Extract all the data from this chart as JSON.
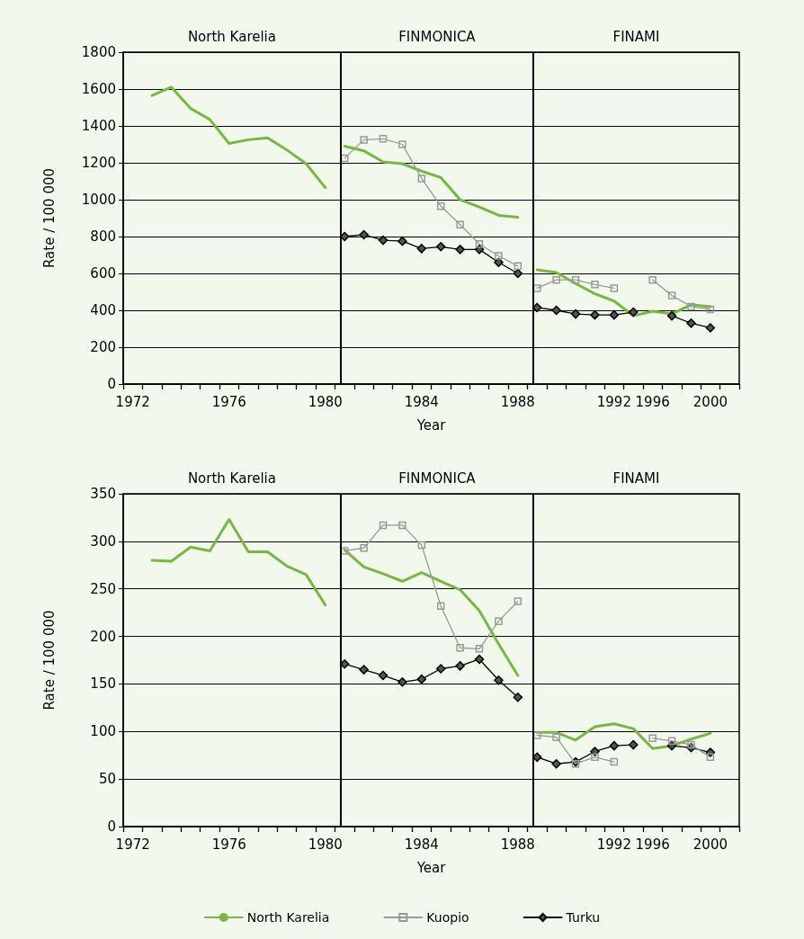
{
  "chart_data": [
    {
      "type": "line",
      "xlabel": "Year",
      "ylabel": "Rate / 100 000",
      "categories": [
        "1972",
        null,
        null,
        null,
        null,
        "1976",
        null,
        null,
        null,
        null,
        "1980",
        null,
        null,
        null,
        null,
        "1984",
        null,
        null,
        null,
        null,
        "1988",
        null,
        null,
        null,
        null,
        "1992",
        null,
        "1996",
        null,
        null,
        "2000",
        null
      ],
      "ylim": [
        0,
        1800
      ],
      "yticks": [
        0,
        200,
        400,
        600,
        800,
        1000,
        1200,
        1400,
        1600,
        1800
      ],
      "grid": "y",
      "legend": false,
      "annotations": [
        "North Karelia",
        "FINMONICA",
        "FINAMI"
      ],
      "series": [
        {
          "color": "#77b843",
          "marker": "none",
          "values": [
            null,
            1565,
            1610,
            1495,
            1435,
            1305,
            1325,
            1335,
            1270,
            1195,
            1065,
            null,
            null,
            null,
            null,
            null,
            null,
            null,
            null,
            null,
            null,
            null,
            null,
            null,
            null,
            null,
            null,
            null,
            null,
            null,
            null,
            null
          ]
        },
        {
          "color": "#77b843",
          "marker": "none",
          "values": [
            null,
            null,
            null,
            null,
            null,
            null,
            null,
            null,
            null,
            null,
            null,
            1290,
            1265,
            1205,
            1195,
            1155,
            1120,
            1000,
            960,
            915,
            905,
            null,
            null,
            null,
            null,
            null,
            null,
            null,
            null,
            null,
            null,
            null
          ]
        },
        {
          "color": "#77b843",
          "marker": "none",
          "values": [
            null,
            null,
            null,
            null,
            null,
            null,
            null,
            null,
            null,
            null,
            null,
            null,
            null,
            null,
            null,
            null,
            null,
            null,
            null,
            null,
            null,
            620,
            605,
            545,
            490,
            450,
            370,
            395,
            380,
            430,
            420,
            null
          ]
        },
        {
          "color": "#999999",
          "marker": "square",
          "values": [
            null,
            null,
            null,
            null,
            null,
            null,
            null,
            null,
            null,
            null,
            null,
            1225,
            1325,
            1330,
            1300,
            1115,
            965,
            865,
            760,
            695,
            640,
            null,
            null,
            null,
            null,
            null,
            null,
            null,
            null,
            null,
            null,
            null
          ]
        },
        {
          "color": "#999999",
          "marker": "square",
          "values": [
            null,
            null,
            null,
            null,
            null,
            null,
            null,
            null,
            null,
            null,
            null,
            null,
            null,
            null,
            null,
            null,
            null,
            null,
            null,
            null,
            null,
            520,
            565,
            565,
            540,
            520,
            null,
            565,
            480,
            420,
            405,
            null
          ]
        },
        {
          "color": "#000000",
          "marker": "diamond",
          "values": [
            null,
            null,
            null,
            null,
            null,
            null,
            null,
            null,
            null,
            null,
            null,
            800,
            810,
            780,
            775,
            735,
            745,
            730,
            730,
            660,
            600,
            null,
            null,
            null,
            null,
            null,
            null,
            null,
            null,
            null,
            null,
            null
          ]
        },
        {
          "color": "#000000",
          "marker": "diamond",
          "values": [
            null,
            null,
            null,
            null,
            null,
            null,
            null,
            null,
            null,
            null,
            null,
            null,
            null,
            null,
            null,
            null,
            null,
            null,
            null,
            null,
            null,
            415,
            400,
            380,
            375,
            375,
            390,
            null,
            370,
            330,
            305,
            null
          ]
        }
      ]
    },
    {
      "type": "line",
      "xlabel": "Year",
      "ylabel": "Rate / 100 000",
      "categories": [
        "1972",
        null,
        null,
        null,
        null,
        "1976",
        null,
        null,
        null,
        null,
        "1980",
        null,
        null,
        null,
        null,
        "1984",
        null,
        null,
        null,
        null,
        "1988",
        null,
        null,
        null,
        null,
        "1992",
        null,
        "1996",
        null,
        null,
        "2000",
        null
      ],
      "ylim": [
        0,
        350
      ],
      "yticks": [
        0,
        50,
        100,
        150,
        200,
        250,
        300,
        350
      ],
      "grid": "y",
      "legend": "bottom",
      "annotations": [
        "North Karelia",
        "FINMONICA",
        "FINAMI"
      ],
      "series": [
        {
          "name": "North Karelia",
          "color": "#77b843",
          "marker": "none",
          "values": [
            null,
            280,
            279,
            294,
            290,
            323,
            289,
            289,
            274,
            265,
            233,
            null,
            null,
            null,
            null,
            null,
            null,
            null,
            null,
            null,
            null,
            null,
            null,
            null,
            null,
            null,
            null,
            null,
            null,
            null,
            null,
            null
          ]
        },
        {
          "color": "#77b843",
          "marker": "none",
          "values": [
            null,
            null,
            null,
            null,
            null,
            null,
            null,
            null,
            null,
            null,
            null,
            291,
            273,
            266,
            258,
            267,
            258,
            249,
            227,
            192,
            159,
            null,
            null,
            null,
            null,
            null,
            null,
            null,
            null,
            null,
            null,
            null
          ]
        },
        {
          "color": "#77b843",
          "marker": "none",
          "values": [
            null,
            null,
            null,
            null,
            null,
            null,
            null,
            null,
            null,
            null,
            null,
            null,
            null,
            null,
            null,
            null,
            null,
            null,
            null,
            null,
            null,
            99,
            99,
            91,
            105,
            108,
            103,
            82,
            85,
            92,
            98,
            null
          ]
        },
        {
          "name": "Kuopio",
          "color": "#999999",
          "marker": "square",
          "values": [
            null,
            null,
            null,
            null,
            null,
            null,
            null,
            null,
            null,
            null,
            null,
            290,
            293,
            317,
            317,
            296,
            232,
            188,
            187,
            216,
            237,
            null,
            null,
            null,
            null,
            null,
            null,
            null,
            null,
            null,
            null,
            null
          ]
        },
        {
          "color": "#999999",
          "marker": "square",
          "values": [
            null,
            null,
            null,
            null,
            null,
            null,
            null,
            null,
            null,
            null,
            null,
            null,
            null,
            null,
            null,
            null,
            null,
            null,
            null,
            null,
            null,
            96,
            94,
            66,
            73,
            68,
            null,
            93,
            90,
            86,
            73,
            null
          ]
        },
        {
          "name": "Turku",
          "color": "#000000",
          "marker": "diamond",
          "values": [
            null,
            null,
            null,
            null,
            null,
            null,
            null,
            null,
            null,
            null,
            null,
            171,
            165,
            159,
            152,
            155,
            166,
            169,
            176,
            154,
            136,
            null,
            null,
            null,
            null,
            null,
            null,
            null,
            null,
            null,
            null,
            null
          ]
        },
        {
          "color": "#000000",
          "marker": "diamond",
          "values": [
            null,
            null,
            null,
            null,
            null,
            null,
            null,
            null,
            null,
            null,
            null,
            null,
            null,
            null,
            null,
            null,
            null,
            null,
            null,
            null,
            null,
            73,
            66,
            68,
            79,
            85,
            86,
            null,
            85,
            83,
            78,
            null
          ]
        }
      ]
    }
  ]
}
